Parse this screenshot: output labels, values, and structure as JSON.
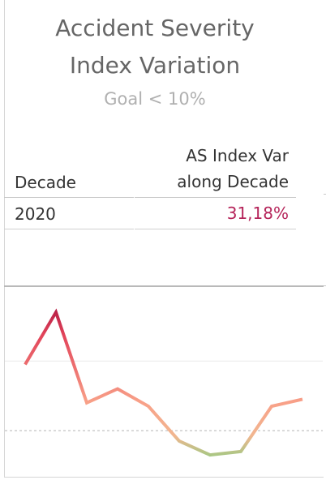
{
  "header": {
    "title_line1": "Accident Severity",
    "title_line2": "Index Variation",
    "subtitle": "Goal < 10%"
  },
  "table": {
    "col1_header": "Decade",
    "col2_header_line1": "AS Index Var",
    "col2_header_line2": "along Decade",
    "rows": [
      {
        "decade": "2020",
        "value": "31,18%"
      }
    ],
    "value_color": "#b5245a"
  },
  "chart_data": {
    "type": "line",
    "title": "",
    "xlabel": "",
    "ylabel": "",
    "x": [
      1,
      2,
      3,
      4,
      5,
      6,
      7,
      8,
      9,
      10
    ],
    "values": [
      19,
      34,
      8,
      12,
      7,
      -3,
      -7,
      -6,
      7,
      9
    ],
    "ylim": [
      -10,
      38
    ],
    "gridlines": [
      20
    ],
    "goal_line": 0,
    "colors": {
      "high": "#a50f3d",
      "mid": "#f79a84",
      "low": "#8fd18a"
    }
  }
}
